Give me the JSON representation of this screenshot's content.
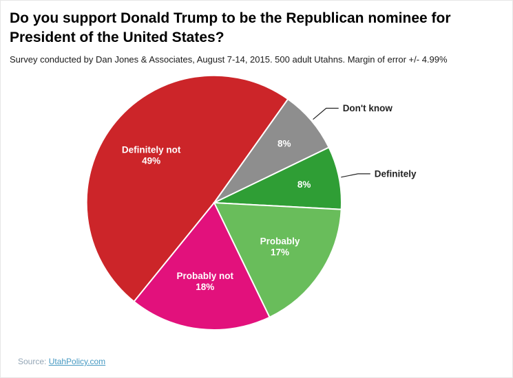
{
  "header": {
    "title": "Do you support Donald Trump to be the Republican nominee for President of the United States?",
    "subtitle": "Survey conducted by Dan Jones & Associates, August 7-14, 2015. 500 adult Utahns. Margin of error +/- 4.99%"
  },
  "footer": {
    "source_prefix": "Source: ",
    "source_link": "UtahPolicy.com"
  },
  "chart_data": {
    "type": "pie",
    "title": "Do you support Donald Trump to be the Republican nominee for President of the United States?",
    "subtitle": "Survey conducted by Dan Jones & Associates, August 7-14, 2015. 500 adult Utahns. Margin of error +/- 4.99%",
    "total": 100,
    "start_angle_deg": 219,
    "legend_position": "none",
    "inside_label_color": "#ffffff",
    "outside_label_color": "#222222",
    "leader_line_color": "#222222",
    "slices": [
      {
        "label": "Definitely not",
        "value": 49,
        "pct_label": "49%",
        "color": "#cc2529",
        "label_placement": "inside"
      },
      {
        "label": "Don't know",
        "value": 8,
        "pct_label": "8%",
        "color": "#8e8e8e",
        "label_placement": "outside"
      },
      {
        "label": "Definitely",
        "value": 8,
        "pct_label": "8%",
        "color": "#2f9e35",
        "label_placement": "outside"
      },
      {
        "label": "Probably",
        "value": 17,
        "pct_label": "17%",
        "color": "#69bd5b",
        "label_placement": "inside"
      },
      {
        "label": "Probably not",
        "value": 18,
        "pct_label": "18%",
        "color": "#e2117c",
        "label_placement": "inside"
      }
    ]
  }
}
